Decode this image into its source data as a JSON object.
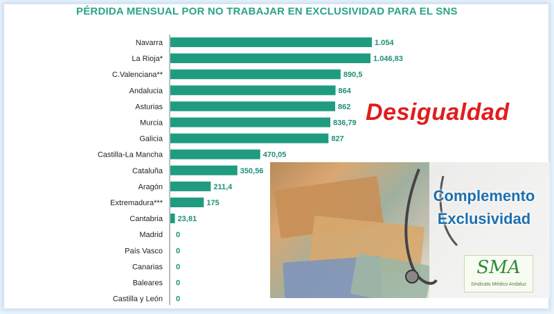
{
  "chart_data": {
    "type": "bar",
    "orientation": "horizontal",
    "title": "PÉRDIDA MENSUAL POR NO TRABAJAR EN EXCLUSIVIDAD PARA EL SNS",
    "categories": [
      "Navarra",
      "La Rioja*",
      "C.Valenciana**",
      "Andalucia",
      "Asturias",
      "Murcia",
      "Galicia",
      "Castilla-La Mancha",
      "Cataluña",
      "Aragón",
      "Extremadura***",
      "Cantabria",
      "Madrid",
      "País Vasco",
      "Canarias",
      "Baleares",
      "Castilla y León"
    ],
    "values": [
      1054,
      1046.83,
      890.5,
      864,
      862,
      836.79,
      827,
      470.05,
      350.56,
      211.4,
      175,
      23.81,
      0,
      0,
      0,
      0,
      0
    ],
    "value_labels": [
      "1.054",
      "1.046,83",
      "890,5",
      "864",
      "862",
      "836,79",
      "827",
      "470,05",
      "350,56",
      "211,4",
      "175",
      "23,81",
      "0",
      "0",
      "0",
      "0",
      "0"
    ],
    "xlim": [
      0,
      1054
    ],
    "bar_color": "#1f9c80",
    "grid": false,
    "legend": "none"
  },
  "overlay": {
    "headline": "Desigualdad",
    "headline_color": "#e11d1d",
    "photo_caption_line1": "Complemento",
    "photo_caption_line2": "Exclusividad",
    "caption_color": "#1d6fb0",
    "logo_text": "SMA",
    "logo_subtitle": "Sindicato Médico Andaluz"
  }
}
